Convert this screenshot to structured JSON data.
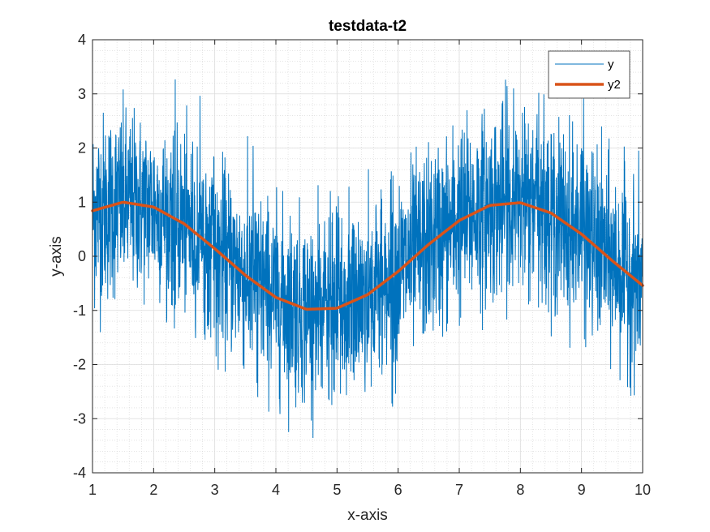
{
  "chart_data": {
    "type": "line",
    "title": "testdata-t2",
    "xlabel": "x-axis",
    "ylabel": "y-axis",
    "xlim": [
      1,
      10
    ],
    "ylim": [
      -4,
      4
    ],
    "x_ticks": [
      "1",
      "2",
      "3",
      "4",
      "5",
      "6",
      "7",
      "8",
      "9",
      "10"
    ],
    "y_ticks": [
      "-4",
      "-3",
      "-2",
      "-1",
      "0",
      "1",
      "2",
      "3",
      "4"
    ],
    "grid": true,
    "minor_grid": true,
    "legend_position": "top-right",
    "series": [
      {
        "name": "y",
        "color": "#0072BD",
        "kind": "noisy",
        "description_values": {
          "x": [
            1,
            1.5,
            2,
            2.5,
            3,
            3.5,
            4,
            4.5,
            5,
            5.5,
            6,
            6.5,
            7,
            7.5,
            8,
            8.5,
            9,
            9.5,
            10
          ],
          "center": [
            0.84,
            1.0,
            0.91,
            0.6,
            0.14,
            -0.35,
            -0.76,
            -0.98,
            -0.96,
            -0.71,
            -0.28,
            0.22,
            0.66,
            0.94,
            0.99,
            0.8,
            0.41,
            -0.08,
            -0.54
          ],
          "upper_envelope": [
            3.5,
            3.7,
            3.5,
            3.2,
            2.8,
            2.3,
            1.9,
            1.6,
            1.7,
            1.9,
            2.3,
            2.8,
            3.3,
            3.6,
            4.0,
            3.5,
            3.1,
            2.6,
            2.2
          ],
          "lower_envelope": [
            -1.8,
            -1.3,
            -1.2,
            -1.6,
            -2.1,
            -2.7,
            -3.1,
            -3.5,
            -3.4,
            -3.1,
            -2.8,
            -2.3,
            -1.9,
            -1.5,
            -1.4,
            -1.6,
            -2.0,
            -2.5,
            -2.8
          ]
        }
      },
      {
        "name": "y2",
        "color": "#D95319",
        "kind": "smooth",
        "x": [
          1,
          1.5,
          2,
          2.5,
          3,
          3.5,
          4,
          4.5,
          5,
          5.5,
          6,
          6.5,
          7,
          7.5,
          8,
          8.5,
          9,
          9.5,
          10
        ],
        "values": [
          0.84,
          1.0,
          0.91,
          0.6,
          0.14,
          -0.35,
          -0.76,
          -0.98,
          -0.96,
          -0.71,
          -0.28,
          0.22,
          0.66,
          0.94,
          0.99,
          0.8,
          0.41,
          -0.08,
          -0.54
        ]
      }
    ]
  }
}
